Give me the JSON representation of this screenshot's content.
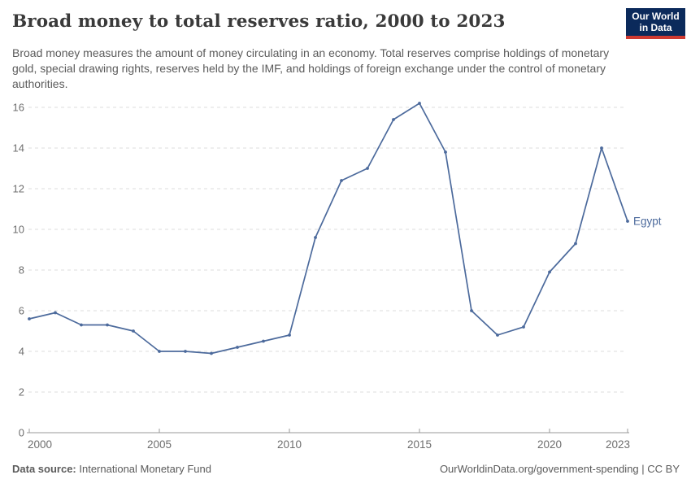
{
  "header": {
    "title": "Broad money to total reserves ratio, 2000 to 2023",
    "subtitle": "Broad money measures the amount of money circulating in an economy. Total reserves comprise holdings of monetary gold, special drawing rights, reserves held by the IMF, and holdings of foreign exchange under the control of monetary authorities.",
    "logo": {
      "line1": "Our World",
      "line2": "in Data",
      "bg_color": "#0b2a5b",
      "stripe_color": "#cf3a31"
    }
  },
  "chart_data": {
    "type": "line",
    "title": "Broad money to total reserves ratio, 2000 to 2023",
    "x": [
      2000,
      2001,
      2002,
      2003,
      2004,
      2005,
      2006,
      2007,
      2008,
      2009,
      2010,
      2011,
      2012,
      2013,
      2014,
      2015,
      2016,
      2017,
      2018,
      2019,
      2020,
      2021,
      2022,
      2023
    ],
    "series": [
      {
        "name": "Egypt",
        "color": "#4c6a9c",
        "values": [
          5.6,
          5.9,
          5.3,
          5.3,
          5.0,
          4.0,
          4.0,
          3.9,
          4.2,
          4.5,
          4.8,
          9.6,
          12.4,
          13.0,
          15.4,
          16.2,
          13.8,
          6.0,
          4.8,
          5.2,
          7.9,
          9.3,
          14.0,
          10.4
        ]
      }
    ],
    "xlabel": "",
    "ylabel": "",
    "ylim": [
      0,
      16
    ],
    "xlim": [
      2000,
      2023
    ],
    "yticks": [
      0,
      2,
      4,
      6,
      8,
      10,
      12,
      14,
      16
    ],
    "xticks": [
      2000,
      2005,
      2010,
      2015,
      2020,
      2023
    ],
    "grid": "horizontal-dashed",
    "legend_position": "end-of-line",
    "end_label": "Egypt",
    "axis_color": "#999999",
    "tick_label_color": "#6e6e6e",
    "gridline_color": "#dcdcdc"
  },
  "footer": {
    "datasource_label": "Data source:",
    "datasource_value": " International Monetary Fund",
    "attribution": "OurWorldinData.org/government-spending | CC BY"
  }
}
